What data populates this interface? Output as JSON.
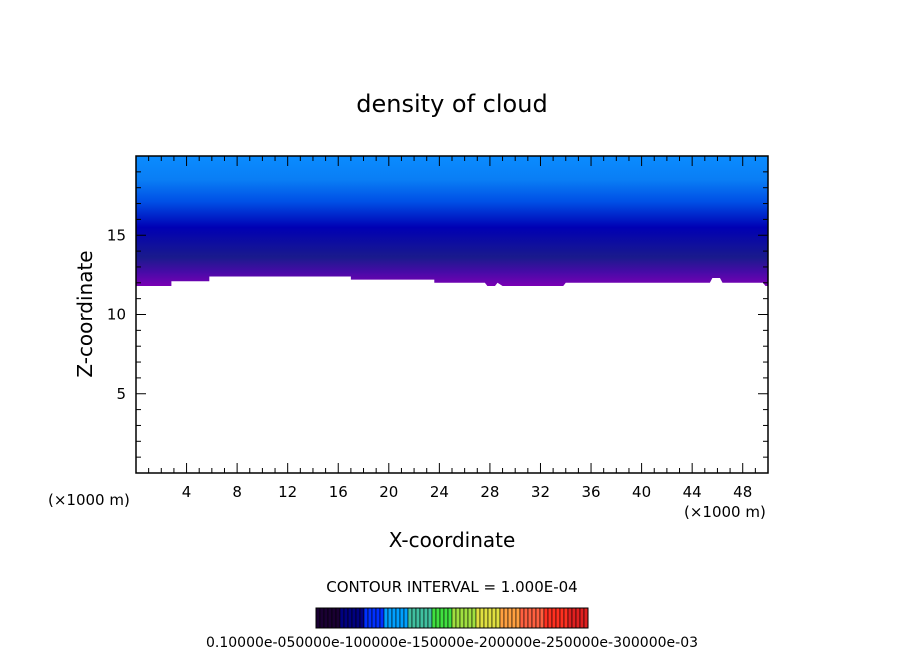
{
  "chart_data": {
    "type": "heatmap",
    "title": "density of cloud",
    "xlabel": "X-coordinate",
    "ylabel": "Z-coordinate",
    "x_unit_left": "(×1000 m)",
    "x_unit_right": "(×1000 m)",
    "xlim": [
      0,
      50
    ],
    "ylim": [
      0,
      20
    ],
    "xticks": [
      4,
      8,
      12,
      16,
      20,
      24,
      28,
      32,
      36,
      40,
      44,
      48
    ],
    "yticks": [
      5,
      10,
      15
    ],
    "cloud_base_km": [
      [
        0,
        11.8
      ],
      [
        2.8,
        11.8
      ],
      [
        2.8,
        12.1
      ],
      [
        5.8,
        12.1
      ],
      [
        5.8,
        12.4
      ],
      [
        17,
        12.4
      ],
      [
        17,
        12.2
      ],
      [
        23.6,
        12.2
      ],
      [
        23.6,
        12.0
      ],
      [
        27.6,
        12.0
      ],
      [
        27.8,
        11.8
      ],
      [
        28.4,
        11.8
      ],
      [
        28.6,
        12.0
      ],
      [
        29,
        11.8
      ],
      [
        33.8,
        11.8
      ],
      [
        34,
        12.0
      ],
      [
        45.4,
        12.0
      ],
      [
        45.6,
        12.3
      ],
      [
        46.2,
        12.3
      ],
      [
        46.4,
        12.0
      ],
      [
        49.6,
        12.0
      ],
      [
        49.8,
        11.8
      ],
      [
        50,
        11.8
      ]
    ],
    "fill_top_color": "#0a8cff",
    "fill_mid_color": "#0000b4",
    "fill_base_color": "#7a00b4",
    "contour_interval": "CONTOUR INTERVAL = 1.000E-04",
    "colorbar_labels": "0.10000e-050000e-100000e-150000e-200000e-250000e-300000e-03",
    "colorbar_colors": [
      "#1a0033",
      "#000080",
      "#0030ff",
      "#00a0ff",
      "#40c0a0",
      "#40e040",
      "#a0e040",
      "#e0e040",
      "#ffa040",
      "#ff6040",
      "#ff3020",
      "#e02020"
    ]
  }
}
